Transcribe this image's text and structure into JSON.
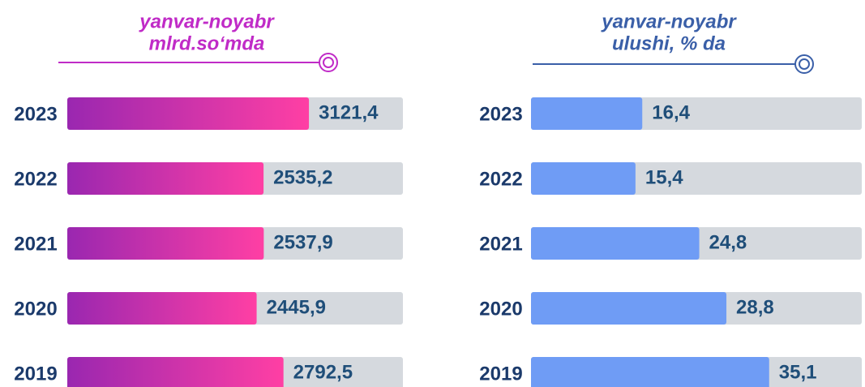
{
  "chart_data": [
    {
      "type": "bar",
      "title": "yanvar-noyabr",
      "subtitle": "mlrd.so‘mda",
      "categories": [
        "2023",
        "2022",
        "2021",
        "2020",
        "2019"
      ],
      "values": [
        3121.4,
        2535.2,
        2537.9,
        2445.9,
        2792.5
      ],
      "value_labels": [
        "3121,4",
        "2535,2",
        "2537,9",
        "2445,9",
        "2792,5"
      ],
      "color": [
        "#9a27b0",
        "#ff3fa4"
      ]
    },
    {
      "type": "bar",
      "title": "yanvar-noyabr",
      "subtitle": "ulushi, % da",
      "categories": [
        "2023",
        "2022",
        "2021",
        "2020",
        "2019"
      ],
      "values": [
        16.4,
        15.4,
        24.8,
        28.8,
        35.1
      ],
      "value_labels": [
        "16,4",
        "15,4",
        "24,8",
        "28,8",
        "35,1"
      ],
      "color": [
        "#6f9cf5",
        "#6f9cf5"
      ]
    }
  ]
}
